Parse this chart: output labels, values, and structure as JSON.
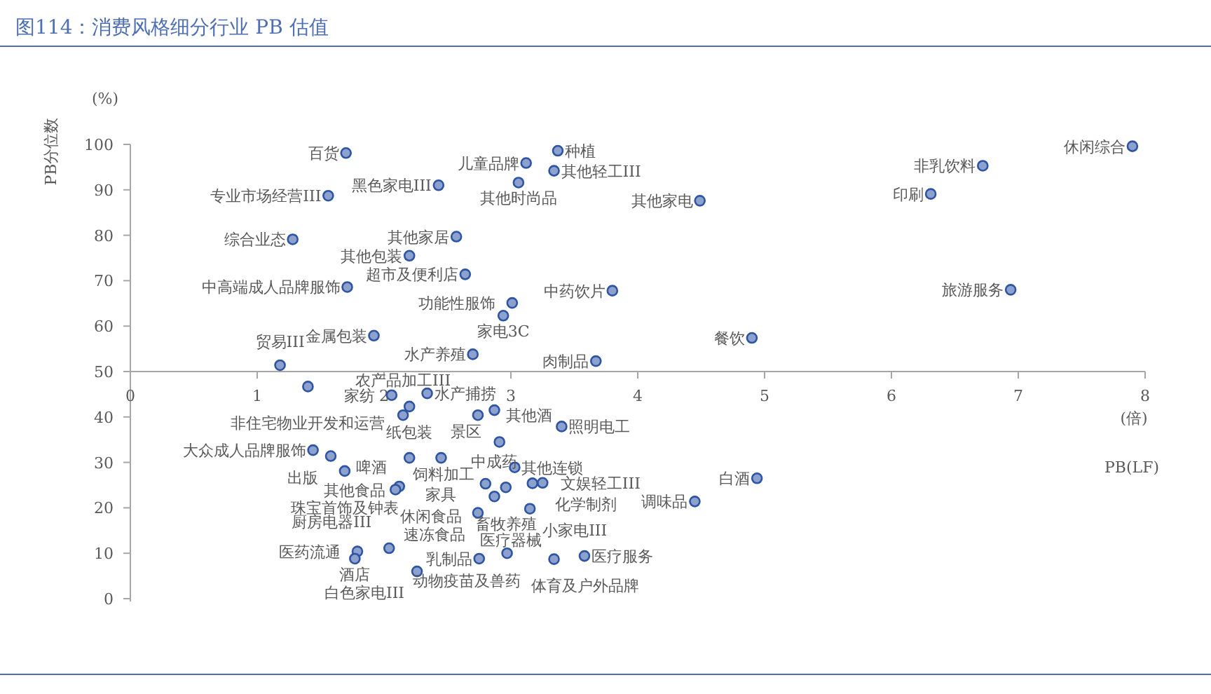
{
  "chart_data": {
    "type": "scatter",
    "title": "图114：消费风格细分行业 PB 估值",
    "xlabel": "PB(LF)",
    "ylabel": "PB分位数",
    "marker": "circle",
    "xlim": [
      0,
      8
    ],
    "ylim": [
      0,
      100
    ],
    "xticks": [
      0,
      1,
      2,
      3,
      4,
      5,
      6,
      7,
      8
    ],
    "yticks": [
      0,
      10,
      20,
      30,
      40,
      50,
      60,
      70,
      80,
      90,
      100
    ],
    "series": [
      {
        "color": "#2e54a4",
        "x": [
          7.9,
          6.72,
          6.31,
          6.94,
          4.49,
          3.8,
          4.9,
          3.67,
          3.37,
          3.12,
          3.34,
          3.06,
          1.7,
          1.56,
          1.28,
          2.43,
          2.57,
          2.2,
          2.64,
          1.71,
          3.01,
          2.94,
          1.92,
          2.7,
          1.18,
          1.4,
          2.34,
          2.06,
          2.2,
          2.15,
          2.74,
          2.87,
          3.4,
          2.91,
          1.44,
          1.58,
          1.69,
          2.2,
          2.45,
          3.03,
          3.25,
          3.17,
          2.8,
          2.96,
          2.87,
          2.12,
          2.09,
          2.74,
          3.15,
          4.45,
          4.94,
          1.79,
          1.77,
          2.04,
          2.26,
          2.75,
          2.97,
          3.34,
          3.58
        ],
        "values": [
          99.6,
          95.3,
          89.1,
          68.0,
          87.6,
          67.8,
          57.4,
          52.3,
          98.6,
          95.9,
          94.2,
          91.6,
          98.1,
          88.7,
          79.1,
          91.0,
          79.7,
          75.5,
          71.4,
          68.6,
          65.1,
          62.3,
          57.9,
          53.8,
          51.4,
          46.7,
          45.2,
          44.8,
          42.3,
          40.4,
          40.4,
          41.5,
          37.9,
          34.5,
          32.7,
          31.4,
          28.1,
          31.0,
          31.0,
          28.9,
          25.5,
          25.4,
          25.3,
          24.5,
          22.5,
          24.7,
          24.0,
          18.9,
          19.8,
          21.4,
          26.5,
          10.4,
          8.8,
          11.1,
          6.0,
          8.8,
          10.0,
          8.7,
          9.4
        ]
      }
    ],
    "annotations": [
      "(%)",
      "(倍)",
      {
        "text": "休闲综合",
        "x": 7.9,
        "y": 99.6
      },
      {
        "text": "非乳饮料",
        "x": 6.72,
        "y": 95.3
      },
      {
        "text": "印刷",
        "x": 6.31,
        "y": 89.1
      },
      {
        "text": "旅游服务",
        "x": 6.94,
        "y": 68.0
      },
      {
        "text": "其他家电",
        "x": 4.49,
        "y": 87.6
      },
      {
        "text": "中药饮片",
        "x": 3.8,
        "y": 67.8
      },
      {
        "text": "餐饮",
        "x": 4.9,
        "y": 57.4
      },
      {
        "text": "肉制品",
        "x": 3.67,
        "y": 52.3
      },
      {
        "text": "种植",
        "x": 3.37,
        "y": 98.6
      },
      {
        "text": "儿童品牌",
        "x": 3.12,
        "y": 95.9
      },
      {
        "text": "其他轻工III",
        "x": 3.34,
        "y": 94.2
      },
      {
        "text": "其他时尚品",
        "x": 3.06,
        "y": 91.6
      },
      {
        "text": "百货",
        "x": 1.7,
        "y": 98.1
      },
      {
        "text": "专业市场经营III",
        "x": 1.56,
        "y": 88.7
      },
      {
        "text": "综合业态",
        "x": 1.28,
        "y": 79.1
      },
      {
        "text": "黑色家电III",
        "x": 2.43,
        "y": 91.0
      },
      {
        "text": "其他家居",
        "x": 2.57,
        "y": 79.7
      },
      {
        "text": "其他包装",
        "x": 2.2,
        "y": 75.5
      },
      {
        "text": "超市及便利店",
        "x": 2.64,
        "y": 71.4
      },
      {
        "text": "中高端成人品牌服饰",
        "x": 1.71,
        "y": 68.6
      },
      {
        "text": "功能性服饰",
        "x": 3.01,
        "y": 65.1
      },
      {
        "text": "家电3C",
        "x": 2.94,
        "y": 62.3
      },
      {
        "text": "金属包装",
        "x": 1.92,
        "y": 57.9
      },
      {
        "text": "水产养殖",
        "x": 2.7,
        "y": 53.8
      },
      {
        "text": "贸易III",
        "x": 1.18,
        "y": 51.4
      },
      {
        "text": "非住宅物业开发和运营",
        "x": 1.4,
        "y": 46.7
      },
      {
        "text": "水产捕捞",
        "x": 2.34,
        "y": 45.2
      },
      {
        "text": "家纺",
        "x": 2.06,
        "y": 44.8
      },
      {
        "text": "纸包装",
        "x": 2.2,
        "y": 42.3
      },
      {
        "text": "农产品加工III",
        "x": 2.15,
        "y": 40.4
      },
      {
        "text": "其他酒",
        "x": 2.74,
        "y": 40.4
      },
      {
        "text": "景区",
        "x": 2.87,
        "y": 41.5
      },
      {
        "text": "照明电工",
        "x": 3.4,
        "y": 37.9
      },
      {
        "text": "饲料加工",
        "x": 2.91,
        "y": 34.5
      },
      {
        "text": "大众成人品牌服饰",
        "x": 1.44,
        "y": 32.7
      },
      {
        "text": "出版",
        "x": 1.58,
        "y": 31.4
      },
      {
        "text": "珠宝首饰及钟表",
        "x": 1.69,
        "y": 28.1
      },
      {
        "text": "其他食品",
        "x": 2.2,
        "y": 31.0
      },
      {
        "text": "家具",
        "x": 2.45,
        "y": 31.0
      },
      {
        "text": "其他连锁",
        "x": 3.03,
        "y": 28.9
      },
      {
        "text": "化学制剂",
        "x": 3.25,
        "y": 25.5
      },
      {
        "text": "文娱轻工III",
        "x": 3.17,
        "y": 25.4
      },
      {
        "text": "休闲食品",
        "x": 2.8,
        "y": 25.3
      },
      {
        "text": "畜牧养殖",
        "x": 2.96,
        "y": 24.5
      },
      {
        "text": "中成药",
        "x": 2.87,
        "y": 22.5
      },
      {
        "text": "啤酒",
        "x": 2.12,
        "y": 24.7
      },
      {
        "text": "厨房电器III",
        "x": 2.09,
        "y": 24.0
      },
      {
        "text": "速冻食品",
        "x": 2.74,
        "y": 18.9
      },
      {
        "text": "小家电III",
        "x": 3.15,
        "y": 19.8
      },
      {
        "text": "调味品",
        "x": 4.45,
        "y": 21.4
      },
      {
        "text": "白酒",
        "x": 4.94,
        "y": 26.5
      },
      {
        "text": "医药流通",
        "x": 1.79,
        "y": 10.4
      },
      {
        "text": "酒店",
        "x": 1.77,
        "y": 8.8
      },
      {
        "text": "动物疫苗及兽药",
        "x": 2.04,
        "y": 11.1
      },
      {
        "text": "白色家电III",
        "x": 2.26,
        "y": 6.0
      },
      {
        "text": "乳制品",
        "x": 2.75,
        "y": 8.8
      },
      {
        "text": "体育及户外品牌",
        "x": 2.97,
        "y": 10.0
      },
      {
        "text": "医疗器械",
        "x": 3.34,
        "y": 8.7
      },
      {
        "text": "医疗服务",
        "x": 3.58,
        "y": 9.4
      }
    ]
  }
}
